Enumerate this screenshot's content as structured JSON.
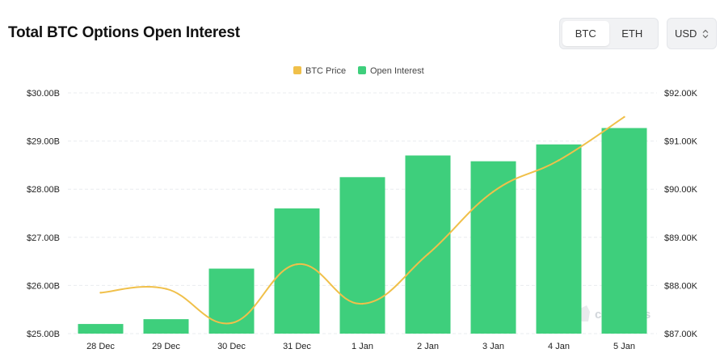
{
  "header": {
    "title": "Total BTC Options Open Interest",
    "tabs": [
      {
        "label": "BTC",
        "active": true
      },
      {
        "label": "ETH",
        "active": false
      }
    ],
    "currency": "USD"
  },
  "watermark": "coinglass",
  "colors": {
    "bar": "#3ecf7c",
    "line": "#f0c04a",
    "grid": "#e9ecef"
  },
  "chart_data": {
    "type": "bar",
    "categories": [
      "28 Dec",
      "29 Dec",
      "30 Dec",
      "31 Dec",
      "1 Jan",
      "2 Jan",
      "3 Jan",
      "4 Jan",
      "5 Jan"
    ],
    "series": [
      {
        "name": "Open Interest",
        "type": "bar",
        "axis": "left",
        "values": [
          25.2,
          25.3,
          26.35,
          27.6,
          28.25,
          28.7,
          28.58,
          28.93,
          29.27
        ]
      },
      {
        "name": "BTC Price",
        "type": "line",
        "axis": "right",
        "values": [
          87850,
          87930,
          87220,
          88440,
          87620,
          88650,
          89950,
          90600,
          91500
        ]
      }
    ],
    "legend": [
      "BTC Price",
      "Open Interest"
    ],
    "left_axis": {
      "ticks": [
        "$25.00B",
        "$26.00B",
        "$27.00B",
        "$28.00B",
        "$29.00B",
        "$30.00B"
      ],
      "range": [
        25,
        30
      ]
    },
    "right_axis": {
      "ticks": [
        "$87.00K",
        "$88.00K",
        "$89.00K",
        "$90.00K",
        "$91.00K",
        "$92.00K"
      ],
      "range": [
        87000,
        92000
      ]
    },
    "legend_position": "top-center",
    "grid": true
  }
}
